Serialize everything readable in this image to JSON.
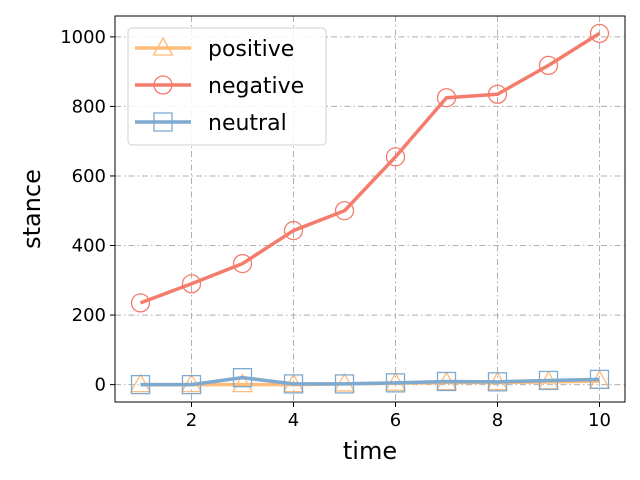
{
  "chart_data": {
    "type": "line",
    "xlabel": "time",
    "ylabel": "stance",
    "xlim": [
      0.5,
      10.5
    ],
    "ylim": [
      -50,
      1060
    ],
    "xticks": [
      2,
      4,
      6,
      8,
      10
    ],
    "yticks": [
      0,
      200,
      400,
      600,
      800,
      1000
    ],
    "grid": true,
    "legend_position": "top-left",
    "x": [
      1,
      2,
      3,
      4,
      5,
      6,
      7,
      8,
      9,
      10
    ],
    "series": [
      {
        "name": "positive",
        "color": "#ffbb78",
        "marker": "triangle",
        "values": [
          0,
          0,
          0,
          0,
          2,
          4,
          6,
          6,
          8,
          10
        ]
      },
      {
        "name": "negative",
        "color": "#f47c6c",
        "marker": "circle",
        "values": [
          235,
          290,
          348,
          443,
          500,
          655,
          825,
          835,
          918,
          1010
        ]
      },
      {
        "name": "neutral",
        "color": "#7eaad0",
        "marker": "square",
        "values": [
          0,
          0,
          20,
          2,
          2,
          5,
          9,
          8,
          12,
          15
        ]
      }
    ]
  }
}
